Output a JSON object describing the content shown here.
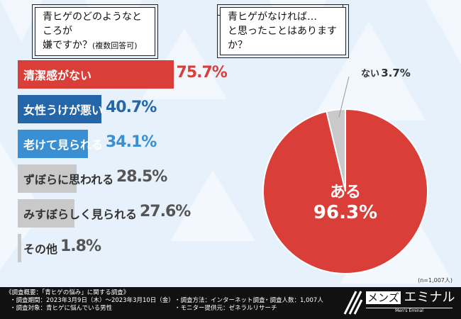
{
  "questions": {
    "left_line1": "青ヒゲのどのようなところが",
    "left_line2": "嫌ですか？",
    "left_note": "(複数回答可)",
    "right_line1": "青ヒゲがなければ…",
    "right_line2": "と思ったことはありますか？"
  },
  "chart_data": [
    {
      "type": "bar",
      "orientation": "horizontal",
      "unit": "%",
      "categories": [
        "清潔感がない",
        "女性うけが悪い",
        "老けて見られる",
        "ずぼらに思われる",
        "みすぼらしく見られる",
        "その他"
      ],
      "values": [
        75.7,
        40.7,
        34.1,
        28.5,
        27.6,
        1.8
      ],
      "value_labels": [
        "75.7%",
        "40.7%",
        "34.1%",
        "28.5%",
        "27.6%",
        "1.8%"
      ],
      "colors": [
        "#d93f38",
        "#2566a8",
        "#3a8fd3",
        "#c9c9c9",
        "#c9c9c9",
        "#c9c9c9"
      ],
      "value_colors": [
        "#d93f38",
        "#2566a8",
        "#3a8fd3",
        "#555555",
        "#555555",
        "#555555"
      ]
    },
    {
      "type": "pie",
      "categories": [
        "ある",
        "ない"
      ],
      "values": [
        96.3,
        3.7
      ],
      "value_labels": [
        "96.3%",
        "3.7%"
      ],
      "colors": [
        "#d93f38",
        "#c9c9c9"
      ]
    }
  ],
  "sample_size": "(n=1,007人)",
  "footer": {
    "title": "《調査概要：「青ヒゲの悩み」に関する調査》",
    "period": "・調査期間：2023年3月9日（木）～2023年3月10日（金）",
    "target": "・調査対象：青ヒゲに悩んでいる男性",
    "method": "・調査方法：インターネット調査",
    "provider": "・モニター提供元：ゼネラルリサーチ",
    "count": "・調査人数：1,007人",
    "brand_a": "メンズ",
    "brand_b": "エミナル",
    "brand_sub": "Men's Eminal"
  }
}
